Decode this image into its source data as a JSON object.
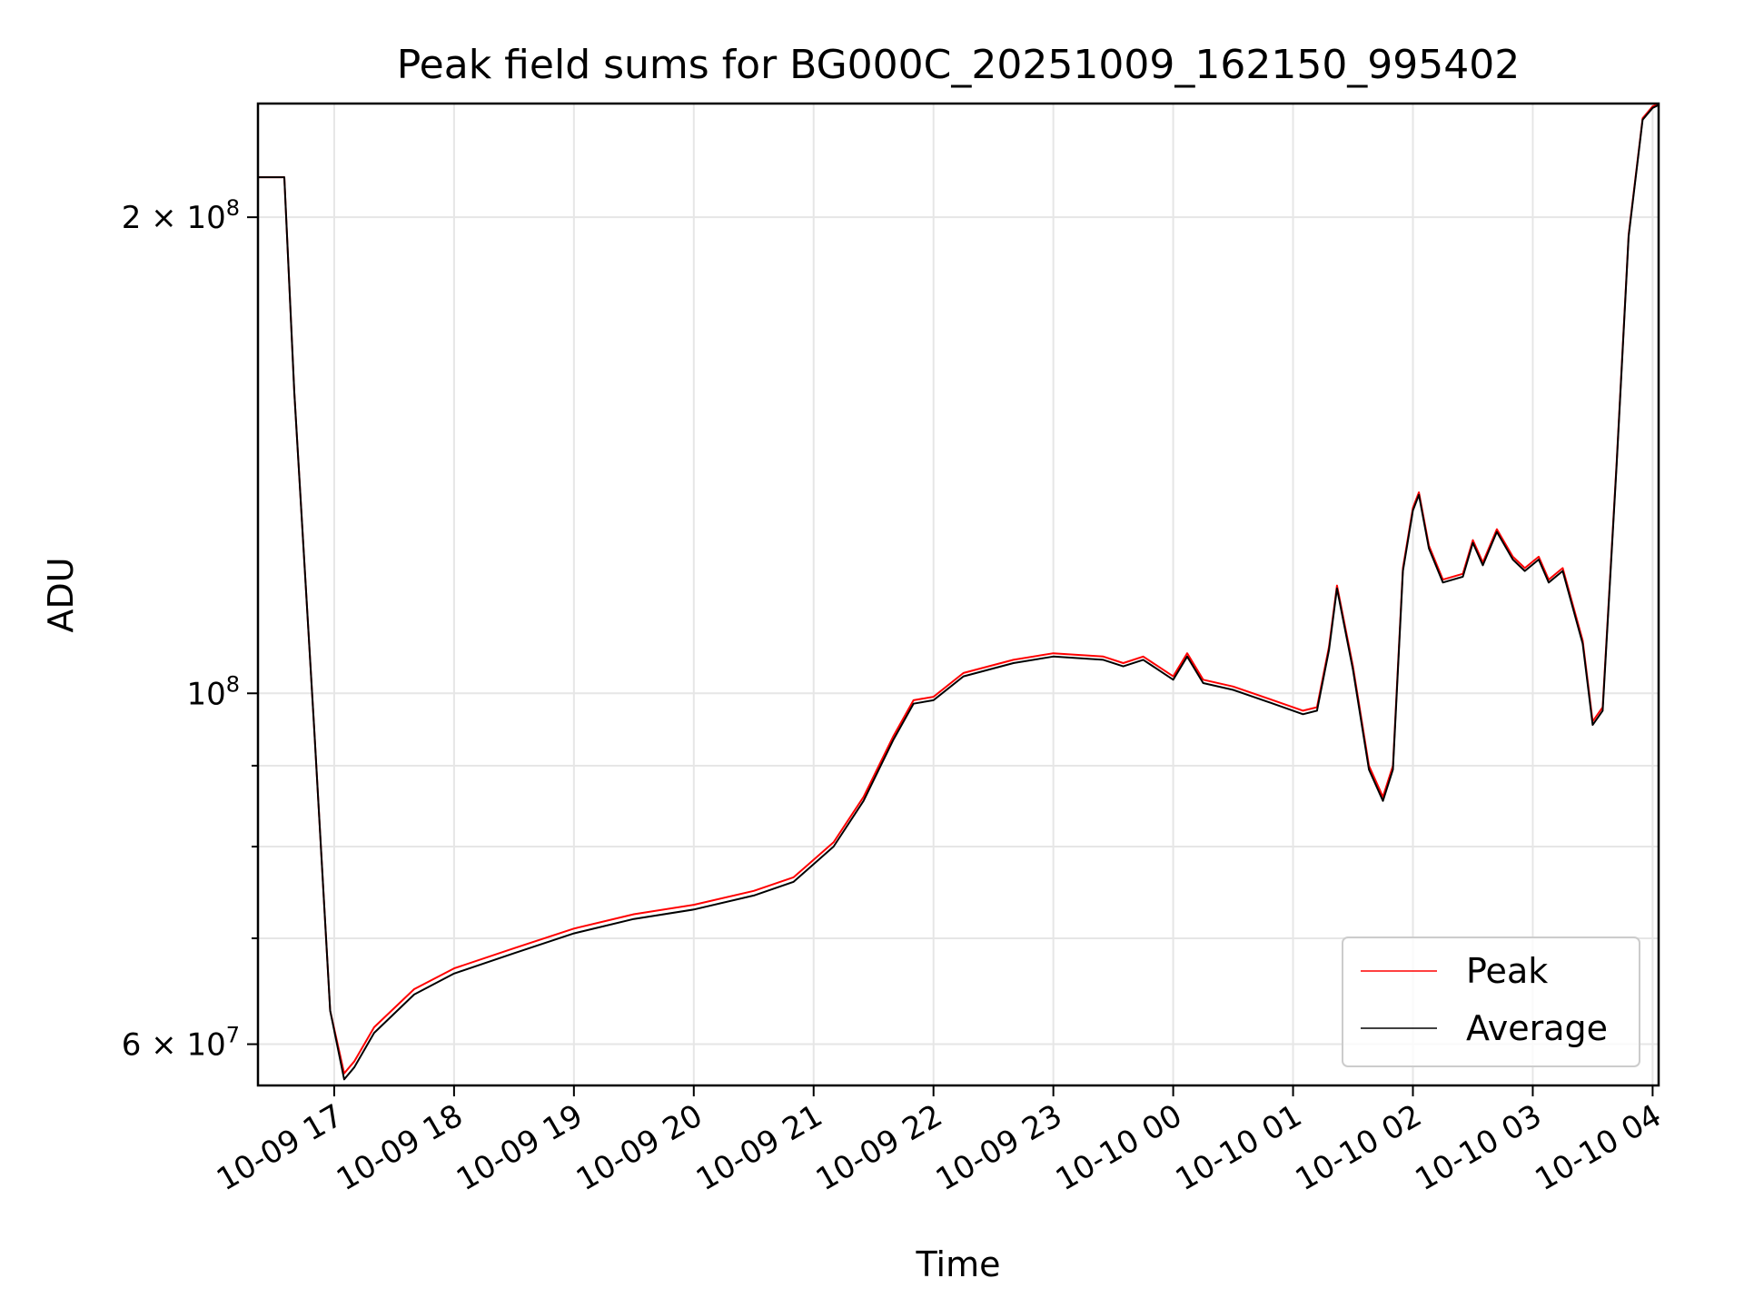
{
  "chart_data": {
    "type": "line",
    "title": "Peak field sums for BG000C_20251009_162150_995402",
    "xlabel": "Time",
    "ylabel": "ADU",
    "y_scale": "log",
    "ylim": [
      56500000,
      236000000
    ],
    "xlim": [
      "2025-10-09T16:21:50",
      "2025-10-10T04:03:00"
    ],
    "x_ticks": [
      {
        "label": "10-09 17",
        "time": "2025-10-09T17:00"
      },
      {
        "label": "10-09 18",
        "time": "2025-10-09T18:00"
      },
      {
        "label": "10-09 19",
        "time": "2025-10-09T19:00"
      },
      {
        "label": "10-09 20",
        "time": "2025-10-09T20:00"
      },
      {
        "label": "10-09 21",
        "time": "2025-10-09T21:00"
      },
      {
        "label": "10-09 22",
        "time": "2025-10-09T22:00"
      },
      {
        "label": "10-09 23",
        "time": "2025-10-09T23:00"
      },
      {
        "label": "10-10 00",
        "time": "2025-10-10T00:00"
      },
      {
        "label": "10-10 01",
        "time": "2025-10-10T01:00"
      },
      {
        "label": "10-10 02",
        "time": "2025-10-10T02:00"
      },
      {
        "label": "10-10 03",
        "time": "2025-10-10T03:00"
      },
      {
        "label": "10-10 04",
        "time": "2025-10-10T04:00"
      }
    ],
    "y_ticks_major": [
      {
        "value": 60000000,
        "base": "6 × 10",
        "exp": "7"
      },
      {
        "value": 100000000,
        "base": "10",
        "exp": "8"
      },
      {
        "value": 200000000,
        "base": "2 × 10",
        "exp": "8"
      }
    ],
    "y_ticks_minor": [
      70000000,
      80000000,
      90000000
    ],
    "grid": true,
    "legend": "lower-right",
    "series": [
      {
        "name": "Peak",
        "color": "#ff0000",
        "x": [
          "2025-10-09T16:21:50",
          "2025-10-09T16:32",
          "2025-10-09T16:35",
          "2025-10-09T16:40",
          "2025-10-09T16:50",
          "2025-10-09T16:58",
          "2025-10-09T17:05",
          "2025-10-09T17:10",
          "2025-10-09T17:20",
          "2025-10-09T17:40",
          "2025-10-09T18:00",
          "2025-10-09T18:30",
          "2025-10-09T19:00",
          "2025-10-09T19:30",
          "2025-10-09T20:00",
          "2025-10-09T20:30",
          "2025-10-09T20:50",
          "2025-10-09T21:10",
          "2025-10-09T21:25",
          "2025-10-09T21:40",
          "2025-10-09T21:50",
          "2025-10-09T22:00",
          "2025-10-09T22:15",
          "2025-10-09T22:40",
          "2025-10-09T23:00",
          "2025-10-09T23:25",
          "2025-10-09T23:35",
          "2025-10-09T23:45",
          "2025-10-10T00:00",
          "2025-10-10T00:07",
          "2025-10-10T00:15",
          "2025-10-10T00:30",
          "2025-10-10T00:50",
          "2025-10-10T01:05",
          "2025-10-10T01:12",
          "2025-10-10T01:18",
          "2025-10-10T01:22",
          "2025-10-10T01:30",
          "2025-10-10T01:38",
          "2025-10-10T01:45",
          "2025-10-10T01:50",
          "2025-10-10T01:55",
          "2025-10-10T02:00",
          "2025-10-10T02:03",
          "2025-10-10T02:08",
          "2025-10-10T02:15",
          "2025-10-10T02:25",
          "2025-10-10T02:30",
          "2025-10-10T02:35",
          "2025-10-10T02:42",
          "2025-10-10T02:50",
          "2025-10-10T02:56",
          "2025-10-10T03:03",
          "2025-10-10T03:08",
          "2025-10-10T03:15",
          "2025-10-10T03:25",
          "2025-10-10T03:30",
          "2025-10-10T03:35",
          "2025-10-10T03:42",
          "2025-10-10T03:48",
          "2025-10-10T03:55",
          "2025-10-10T04:00",
          "2025-10-10T04:03"
        ],
        "y": [
          212000000,
          212000000,
          212000000,
          155000000,
          95000000,
          63000000,
          57500000,
          58500000,
          61500000,
          65000000,
          67000000,
          69000000,
          71000000,
          72500000,
          73500000,
          75000000,
          76500000,
          80500000,
          86000000,
          94000000,
          99000000,
          99500000,
          103000000,
          105000000,
          106000000,
          105500000,
          104500000,
          105500000,
          102500000,
          106000000,
          102000000,
          101000000,
          99000000,
          97500000,
          98000000,
          107000000,
          117000000,
          104000000,
          90000000,
          86000000,
          90000000,
          120000000,
          131000000,
          134000000,
          124000000,
          118000000,
          119000000,
          125000000,
          121000000,
          127000000,
          122000000,
          120000000,
          122000000,
          118000000,
          120000000,
          108000000,
          96000000,
          98000000,
          140000000,
          195000000,
          231000000,
          235000000,
          236000000
        ]
      },
      {
        "name": "Average",
        "color": "#000000",
        "x": [
          "2025-10-09T16:21:50",
          "2025-10-09T16:32",
          "2025-10-09T16:35",
          "2025-10-09T16:40",
          "2025-10-09T16:50",
          "2025-10-09T16:58",
          "2025-10-09T17:05",
          "2025-10-09T17:10",
          "2025-10-09T17:20",
          "2025-10-09T17:40",
          "2025-10-09T18:00",
          "2025-10-09T18:30",
          "2025-10-09T19:00",
          "2025-10-09T19:30",
          "2025-10-09T20:00",
          "2025-10-09T20:30",
          "2025-10-09T20:50",
          "2025-10-09T21:10",
          "2025-10-09T21:25",
          "2025-10-09T21:40",
          "2025-10-09T21:50",
          "2025-10-09T22:00",
          "2025-10-09T22:15",
          "2025-10-09T22:40",
          "2025-10-09T23:00",
          "2025-10-09T23:25",
          "2025-10-09T23:35",
          "2025-10-09T23:45",
          "2025-10-10T00:00",
          "2025-10-10T00:07",
          "2025-10-10T00:15",
          "2025-10-10T00:30",
          "2025-10-10T00:50",
          "2025-10-10T01:05",
          "2025-10-10T01:12",
          "2025-10-10T01:18",
          "2025-10-10T01:22",
          "2025-10-10T01:30",
          "2025-10-10T01:38",
          "2025-10-10T01:45",
          "2025-10-10T01:50",
          "2025-10-10T01:55",
          "2025-10-10T02:00",
          "2025-10-10T02:03",
          "2025-10-10T02:08",
          "2025-10-10T02:15",
          "2025-10-10T02:25",
          "2025-10-10T02:30",
          "2025-10-10T02:35",
          "2025-10-10T02:42",
          "2025-10-10T02:50",
          "2025-10-10T02:56",
          "2025-10-10T03:03",
          "2025-10-10T03:08",
          "2025-10-10T03:15",
          "2025-10-10T03:25",
          "2025-10-10T03:30",
          "2025-10-10T03:35",
          "2025-10-10T03:42",
          "2025-10-10T03:48",
          "2025-10-10T03:55",
          "2025-10-10T04:00",
          "2025-10-10T04:03"
        ],
        "y": [
          212000000,
          212000000,
          212000000,
          155000000,
          95000000,
          63000000,
          57000000,
          58000000,
          61000000,
          64500000,
          66500000,
          68500000,
          70500000,
          72000000,
          73000000,
          74500000,
          76000000,
          80000000,
          85500000,
          93500000,
          98500000,
          99000000,
          102500000,
          104500000,
          105500000,
          105000000,
          104000000,
          105000000,
          102000000,
          105500000,
          101500000,
          100500000,
          98500000,
          97000000,
          97500000,
          106500000,
          116500000,
          103500000,
          89500000,
          85500000,
          89500000,
          119500000,
          130500000,
          133500000,
          123500000,
          117500000,
          118500000,
          124500000,
          120500000,
          126500000,
          121500000,
          119500000,
          121500000,
          117500000,
          119500000,
          107500000,
          95500000,
          97500000,
          139500000,
          194500000,
          230500000,
          234500000,
          235500000
        ]
      }
    ]
  }
}
